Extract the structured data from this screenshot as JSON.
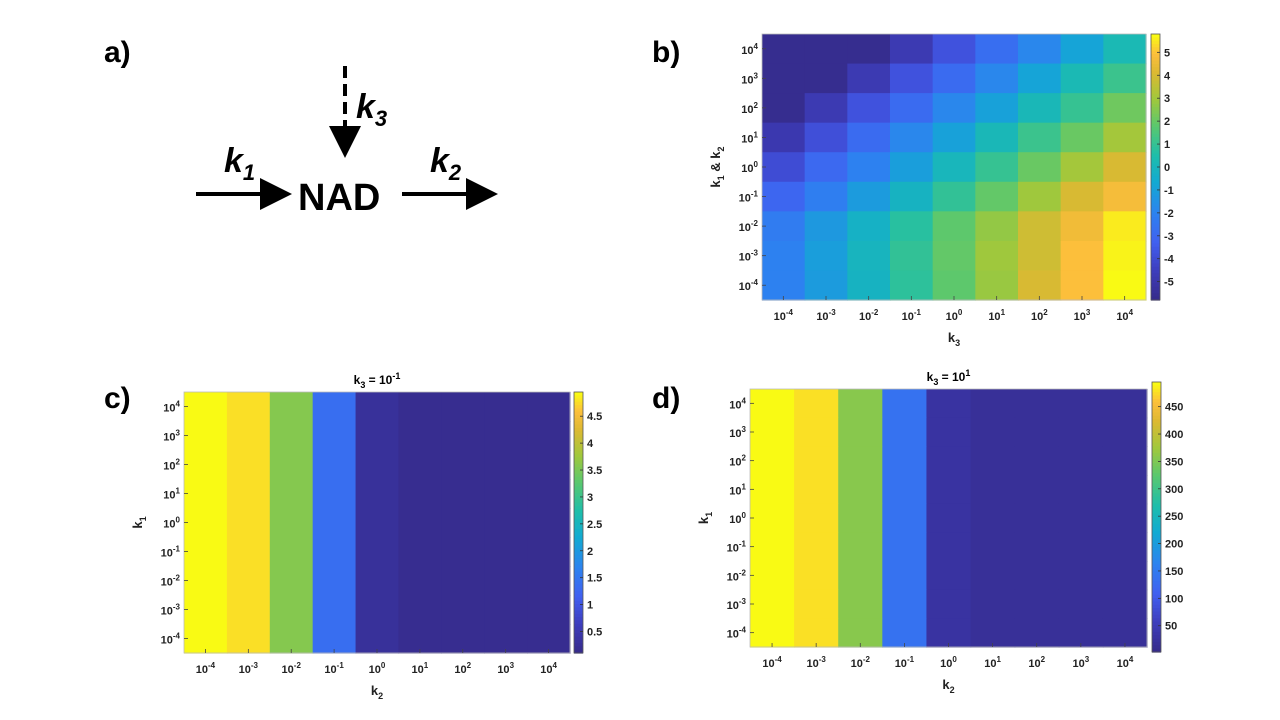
{
  "panels": {
    "a": "a)",
    "b": "b)",
    "c": "c)",
    "d": "d)"
  },
  "diagram": {
    "k1": "k",
    "k1_sub": "1",
    "k2": "k",
    "k2_sub": "2",
    "k3": "k",
    "k3_sub": "3",
    "center": "NAD"
  },
  "chart_data": [
    {
      "panel": "b",
      "type": "heatmap",
      "title": "",
      "xlabel": "k3",
      "ylabel": "k1 & k2",
      "x_exponents": [
        -4,
        -3,
        -2,
        -1,
        0,
        1,
        2,
        3,
        4
      ],
      "y_exponents_bottom_to_top": [
        -4,
        -3,
        -2,
        -1,
        0,
        1,
        2,
        3,
        4
      ],
      "colorbar": {
        "min": -5.8,
        "max": 5.8,
        "ticks": [
          5,
          4,
          3,
          2,
          1,
          0,
          -1,
          -2,
          -3,
          -4,
          -5
        ]
      },
      "values_top_to_bottom": [
        [
          -5.6,
          -5.6,
          -5.6,
          -4.7,
          -3.7,
          -2.7,
          -1.8,
          -0.8,
          0.3
        ],
        [
          -5.6,
          -5.6,
          -4.7,
          -3.7,
          -2.8,
          -1.8,
          -0.8,
          0.3,
          1.2
        ],
        [
          -5.6,
          -4.7,
          -3.7,
          -2.8,
          -1.8,
          -0.9,
          0.2,
          1.1,
          2.2
        ],
        [
          -4.8,
          -3.8,
          -2.8,
          -1.8,
          -0.9,
          0.2,
          1.2,
          2.1,
          3.1
        ],
        [
          -3.9,
          -2.9,
          -2.0,
          -1.0,
          0.1,
          1.1,
          2.1,
          3.1,
          4.1
        ],
        [
          -3.0,
          -2.1,
          -1.1,
          -0.1,
          1.0,
          2.0,
          3.0,
          4.1,
          4.8
        ],
        [
          -2.2,
          -1.2,
          -0.2,
          0.8,
          1.9,
          2.8,
          3.9,
          4.7,
          5.6
        ],
        [
          -2.0,
          -1.0,
          0.0,
          1.0,
          2.0,
          3.0,
          3.9,
          5.0,
          5.7
        ],
        [
          -2.0,
          -1.1,
          -0.1,
          0.9,
          1.9,
          2.9,
          4.1,
          5.0,
          5.8
        ]
      ]
    },
    {
      "panel": "c",
      "type": "heatmap",
      "title": "k3 = 10^-1",
      "title_base": "k",
      "title_sub": "3",
      "title_mid": " = 10",
      "title_sup": "-1",
      "xlabel": "k2",
      "ylabel": "k1",
      "x_exponents": [
        -4,
        -3,
        -2,
        -1,
        0,
        1,
        2,
        3,
        4
      ],
      "y_exponents_bottom_to_top": [
        -4,
        -3,
        -2,
        -1,
        0,
        1,
        2,
        3,
        4
      ],
      "colorbar": {
        "min": 0.1,
        "max": 4.95,
        "ticks": [
          4.5,
          4,
          3.5,
          3,
          2.5,
          2,
          1.5,
          1,
          0.5
        ]
      },
      "column_values": [
        4.95,
        4.8,
        3.6,
        1.4,
        0.3,
        0.2,
        0.2,
        0.2,
        0.2
      ]
    },
    {
      "panel": "d",
      "type": "heatmap",
      "title": "k3 = 10^1",
      "title_base": "k",
      "title_sub": "3",
      "title_mid": " = 10",
      "title_sup": "1",
      "xlabel": "k2",
      "ylabel": "k1",
      "x_exponents": [
        -4,
        -3,
        -2,
        -1,
        0,
        1,
        2,
        3,
        4
      ],
      "y_exponents_bottom_to_top": [
        -4,
        -3,
        -2,
        -1,
        0,
        1,
        2,
        3,
        4
      ],
      "colorbar": {
        "min": 2,
        "max": 495,
        "ticks": [
          450,
          400,
          350,
          300,
          250,
          200,
          150,
          100,
          50
        ]
      },
      "column_values": [
        495,
        480,
        360,
        140,
        30,
        20,
        20,
        20,
        20
      ]
    }
  ]
}
